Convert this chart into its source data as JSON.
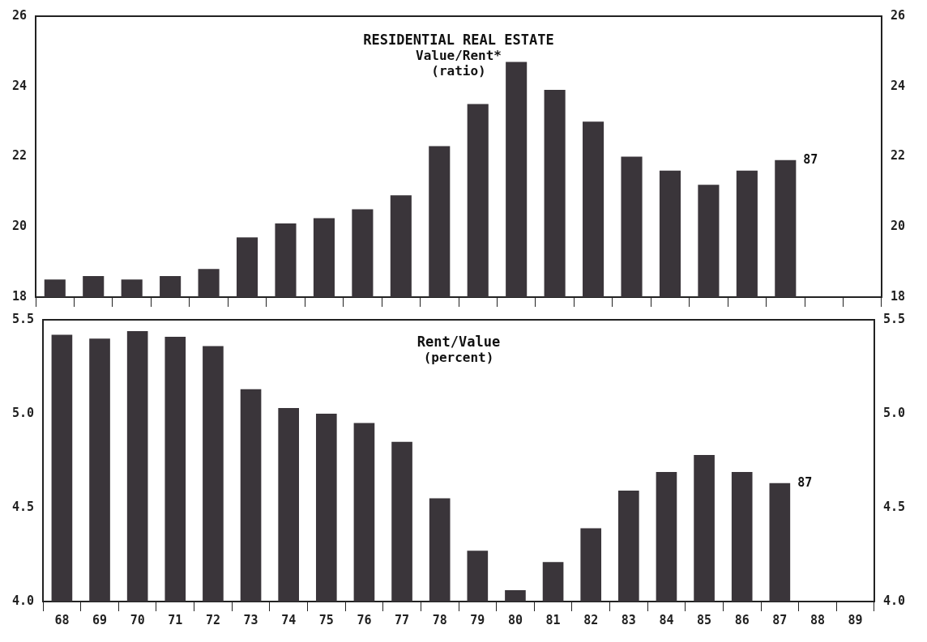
{
  "chart_data": [
    {
      "type": "bar",
      "title": "RESIDENTIAL REAL ESTATE",
      "subtitle": "Value/Rent*",
      "annotations": [
        "(ratio)",
        {
          "text": "87",
          "x": "87",
          "y": 21.9
        }
      ],
      "categories": [
        "68",
        "69",
        "70",
        "71",
        "72",
        "73",
        "74",
        "75",
        "76",
        "77",
        "78",
        "79",
        "80",
        "81",
        "82",
        "83",
        "84",
        "85",
        "86",
        "87",
        "88",
        "89"
      ],
      "values": [
        18.5,
        18.6,
        18.5,
        18.6,
        18.8,
        19.7,
        20.1,
        20.25,
        20.5,
        20.9,
        22.3,
        23.5,
        24.7,
        23.9,
        23.0,
        22.0,
        21.6,
        21.2,
        21.6,
        21.9,
        null,
        null
      ],
      "color": "#3a353a",
      "ylim": [
        18,
        26
      ],
      "yticks": [
        18,
        20,
        22,
        24,
        26
      ],
      "y2lim": [
        18,
        26
      ],
      "y2ticks": [
        18,
        20,
        22,
        24,
        26
      ],
      "grid": false,
      "legend": false,
      "tick_labels": "y"
    },
    {
      "type": "bar",
      "title": "Rent/Value",
      "subtitle": "(percent)",
      "annotations": [
        {
          "text": "87",
          "x": "87",
          "y": 4.63
        }
      ],
      "categories": [
        "68",
        "69",
        "70",
        "71",
        "72",
        "73",
        "74",
        "75",
        "76",
        "77",
        "78",
        "79",
        "80",
        "81",
        "82",
        "83",
        "84",
        "85",
        "86",
        "87",
        "88",
        "89"
      ],
      "values": [
        5.42,
        5.4,
        5.44,
        5.41,
        5.36,
        5.13,
        5.03,
        5.0,
        4.95,
        4.85,
        4.55,
        4.27,
        4.06,
        4.21,
        4.39,
        4.59,
        4.69,
        4.78,
        4.69,
        4.63,
        null,
        null
      ],
      "color": "#3a353a",
      "ylim": [
        4.0,
        5.5
      ],
      "yticks": [
        {
          "value": 4.0,
          "label": "4.0"
        },
        {
          "value": 4.5,
          "label": "4.5"
        },
        {
          "value": 5.0,
          "label": "5.0"
        },
        {
          "value": 5.5,
          "label": "5.5"
        }
      ],
      "y2lim": [
        4.0,
        5.5
      ],
      "y2ticks": [
        {
          "value": 4.0,
          "label": "4.0"
        },
        {
          "value": 4.5,
          "label": "4.5"
        },
        {
          "value": 5.0,
          "label": "5.0"
        },
        {
          "value": 5.5,
          "label": "5.5"
        }
      ],
      "grid": false,
      "legend": false
    }
  ]
}
